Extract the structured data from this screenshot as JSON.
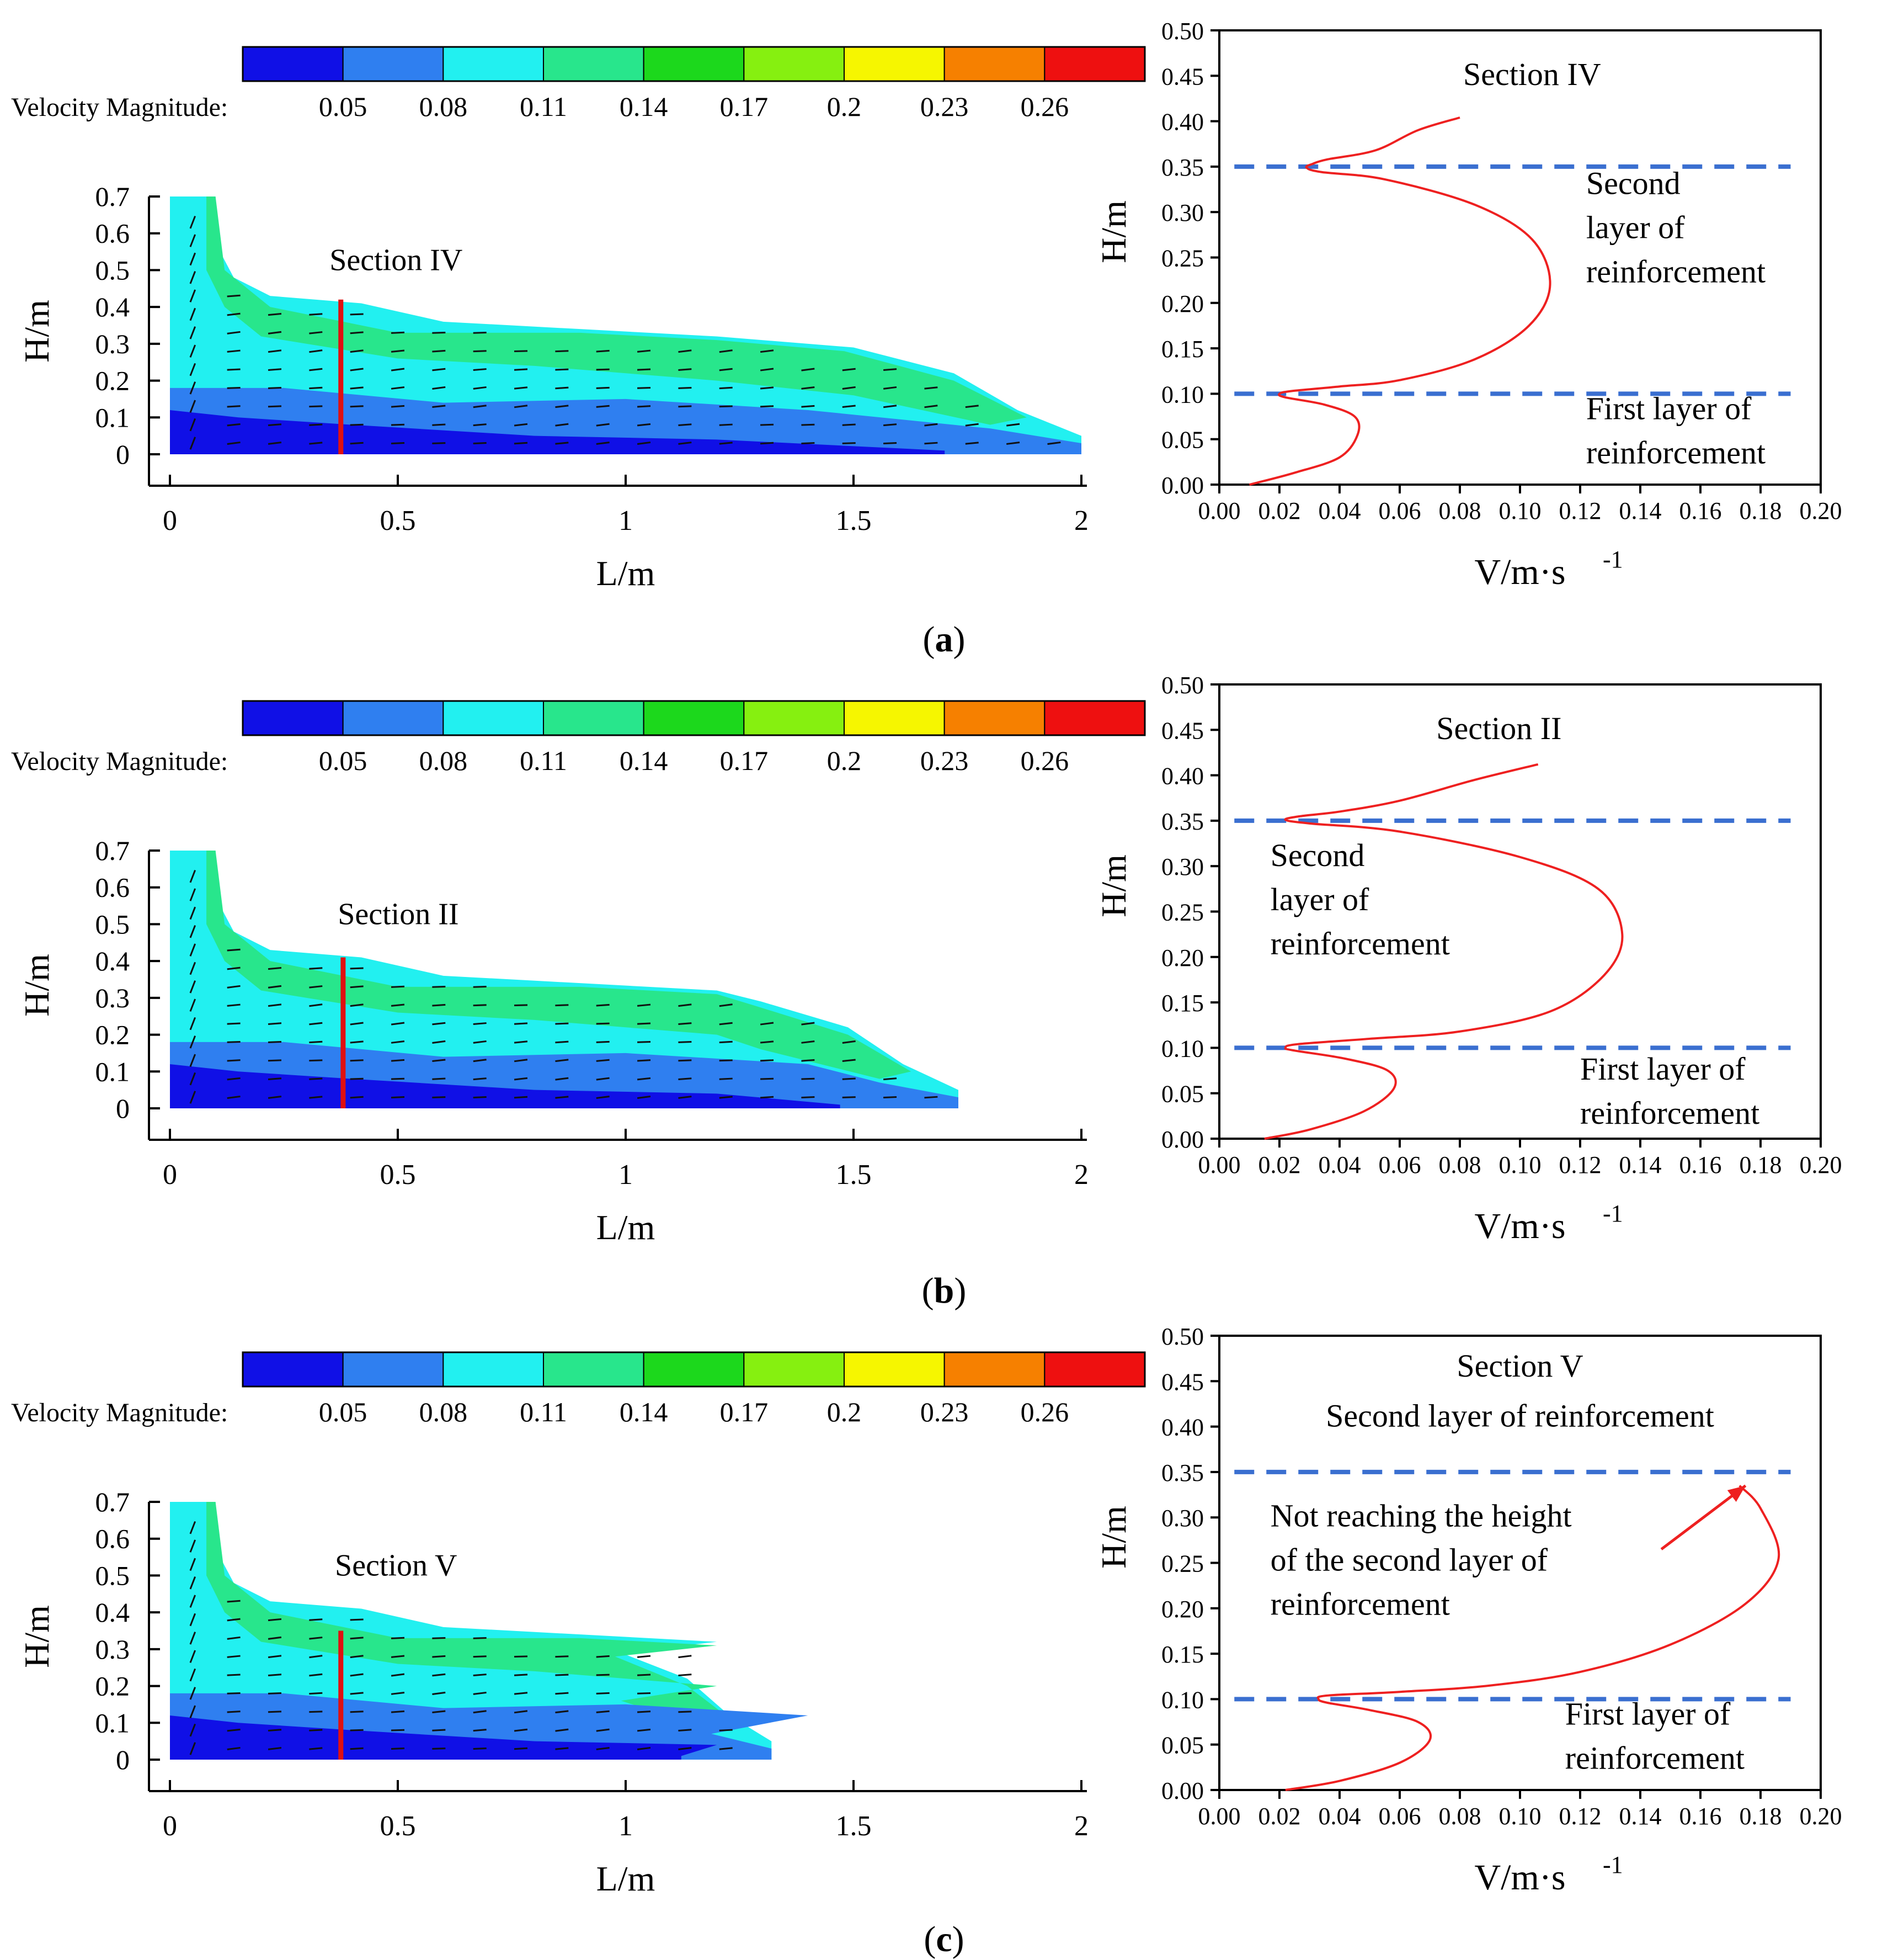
{
  "colorbar": {
    "label": "Velocity Magnitude:",
    "ticks": [
      "0.05",
      "0.08",
      "0.11",
      "0.14",
      "0.17",
      "0.2",
      "0.23",
      "0.26"
    ],
    "colors": [
      "#1010e6",
      "#2f7ff0",
      "#22f0f0",
      "#28e68c",
      "#1cd81c",
      "#86f010",
      "#f6f600",
      "#f68000",
      "#ee1010"
    ]
  },
  "panels": [
    {
      "caption": "a",
      "flow_field": {
        "xlabel": "L/m",
        "ylabel": "H/m",
        "xticks": [
          "0",
          "0.5",
          "1",
          "1.5",
          "2"
        ],
        "yticks": [
          "0",
          "0.1",
          "0.2",
          "0.3",
          "0.4",
          "0.5",
          "0.6",
          "0.7"
        ],
        "xlim": [
          0,
          2
        ],
        "ylim": [
          0,
          0.7
        ],
        "section_label": "Section IV",
        "section_x": 0.375,
        "section_top": 0.42,
        "front_length": 2.0
      },
      "profile": {
        "type": "line",
        "xlabel": "V/m·s-1",
        "ylabel": "H/m",
        "xlim": [
          0,
          0.2
        ],
        "ylim": [
          0,
          0.5
        ],
        "xticks": [
          "0.00",
          "0.02",
          "0.04",
          "0.06",
          "0.08",
          "0.10",
          "0.12",
          "0.14",
          "0.16",
          "0.18",
          "0.20"
        ],
        "yticks": [
          "0.00",
          "0.05",
          "0.10",
          "0.15",
          "0.20",
          "0.25",
          "0.30",
          "0.35",
          "0.40",
          "0.45",
          "0.50"
        ],
        "title": "Section IV",
        "reference_lines": [
          0.1,
          0.35
        ],
        "annotations": [
          {
            "text": [
              "Second",
              "layer of",
              "reinforcement"
            ],
            "x": 0.122,
            "y": 0.32
          },
          {
            "text": [
              "First layer of",
              "reinforcement"
            ],
            "x": 0.122,
            "y": 0.072
          }
        ],
        "series": [
          {
            "name": "Section IV",
            "points": [
              [
                0.01,
                0.0
              ],
              [
                0.025,
                0.013
              ],
              [
                0.04,
                0.03
              ],
              [
                0.046,
                0.055
              ],
              [
                0.045,
                0.075
              ],
              [
                0.035,
                0.088
              ],
              [
                0.022,
                0.096
              ],
              [
                0.02,
                0.1
              ],
              [
                0.024,
                0.103
              ],
              [
                0.04,
                0.108
              ],
              [
                0.06,
                0.115
              ],
              [
                0.085,
                0.138
              ],
              [
                0.103,
                0.175
              ],
              [
                0.11,
                0.22
              ],
              [
                0.104,
                0.27
              ],
              [
                0.085,
                0.308
              ],
              [
                0.055,
                0.336
              ],
              [
                0.034,
                0.344
              ],
              [
                0.029,
                0.349
              ],
              [
                0.031,
                0.353
              ],
              [
                0.036,
                0.358
              ],
              [
                0.052,
                0.368
              ],
              [
                0.066,
                0.39
              ],
              [
                0.08,
                0.404
              ]
            ]
          }
        ]
      }
    },
    {
      "caption": "b",
      "flow_field": {
        "xlabel": "L/m",
        "ylabel": "H/m",
        "xticks": [
          "0",
          "0.5",
          "1",
          "1.5",
          "2"
        ],
        "yticks": [
          "0",
          "0.1",
          "0.2",
          "0.3",
          "0.4",
          "0.5",
          "0.6",
          "0.7"
        ],
        "xlim": [
          0,
          2
        ],
        "ylim": [
          0,
          0.7
        ],
        "section_label": "Section II",
        "section_x": 0.38,
        "section_top": 0.41,
        "front_length": 1.73
      },
      "profile": {
        "type": "line",
        "xlabel": "V/m·s-1",
        "ylabel": "H/m",
        "xlim": [
          0,
          0.2
        ],
        "ylim": [
          0,
          0.5
        ],
        "xticks": [
          "0.00",
          "0.02",
          "0.04",
          "0.06",
          "0.08",
          "0.10",
          "0.12",
          "0.14",
          "0.16",
          "0.18",
          "0.20"
        ],
        "yticks": [
          "0.00",
          "0.05",
          "0.10",
          "0.15",
          "0.20",
          "0.25",
          "0.30",
          "0.35",
          "0.40",
          "0.45",
          "0.50"
        ],
        "title": "Section II",
        "reference_lines": [
          0.1,
          0.35
        ],
        "annotations": [
          {
            "text": [
              "Second",
              "layer of",
              "reinforcement"
            ],
            "x": 0.017,
            "y": 0.3
          },
          {
            "text": [
              "First layer of",
              "reinforcement"
            ],
            "x": 0.12,
            "y": 0.065
          }
        ],
        "series": [
          {
            "name": "Section II",
            "points": [
              [
                0.015,
                0.0
              ],
              [
                0.03,
                0.01
              ],
              [
                0.048,
                0.03
              ],
              [
                0.058,
                0.055
              ],
              [
                0.056,
                0.075
              ],
              [
                0.042,
                0.088
              ],
              [
                0.025,
                0.097
              ],
              [
                0.022,
                0.1
              ],
              [
                0.026,
                0.104
              ],
              [
                0.05,
                0.11
              ],
              [
                0.08,
                0.118
              ],
              [
                0.11,
                0.14
              ],
              [
                0.128,
                0.18
              ],
              [
                0.134,
                0.225
              ],
              [
                0.126,
                0.275
              ],
              [
                0.1,
                0.31
              ],
              [
                0.06,
                0.338
              ],
              [
                0.03,
                0.347
              ],
              [
                0.022,
                0.351
              ],
              [
                0.027,
                0.355
              ],
              [
                0.04,
                0.36
              ],
              [
                0.06,
                0.372
              ],
              [
                0.085,
                0.395
              ],
              [
                0.106,
                0.412
              ]
            ]
          }
        ]
      }
    },
    {
      "caption": "c",
      "flow_field": {
        "xlabel": "L/m",
        "ylabel": "H/m",
        "xticks": [
          "0",
          "0.5",
          "1",
          "1.5",
          "2"
        ],
        "yticks": [
          "0",
          "0.1",
          "0.2",
          "0.3",
          "0.4",
          "0.5",
          "0.6",
          "0.7"
        ],
        "xlim": [
          0,
          2
        ],
        "ylim": [
          0,
          0.7
        ],
        "section_label": "Section V",
        "section_x": 0.375,
        "section_top": 0.35,
        "front_length": 1.32
      },
      "profile": {
        "type": "line",
        "xlabel": "V/m·s-1",
        "ylabel": "H/m",
        "xlim": [
          0,
          0.2
        ],
        "ylim": [
          0,
          0.5
        ],
        "xticks": [
          "0.00",
          "0.02",
          "0.04",
          "0.06",
          "0.08",
          "0.10",
          "0.12",
          "0.14",
          "0.16",
          "0.18",
          "0.20"
        ],
        "yticks": [
          "0.00",
          "0.05",
          "0.10",
          "0.15",
          "0.20",
          "0.25",
          "0.30",
          "0.35",
          "0.40",
          "0.45",
          "0.50"
        ],
        "title": "Section V",
        "title_line2": "Second layer of reinforcement",
        "reference_lines": [
          0.1,
          0.35
        ],
        "annotations": [
          {
            "text": [
              "Not reaching the height",
              "of the second layer of",
              "reinforcement"
            ],
            "x": 0.017,
            "y": 0.29
          },
          {
            "text": [
              "First layer of",
              "reinforcement"
            ],
            "x": 0.115,
            "y": 0.072
          }
        ],
        "arrow": {
          "from": [
            0.147,
            0.265
          ],
          "to": [
            0.175,
            0.335
          ]
        },
        "series": [
          {
            "name": "Section V",
            "points": [
              [
                0.022,
                0.0
              ],
              [
                0.04,
                0.01
              ],
              [
                0.06,
                0.03
              ],
              [
                0.07,
                0.055
              ],
              [
                0.066,
                0.075
              ],
              [
                0.05,
                0.088
              ],
              [
                0.036,
                0.096
              ],
              [
                0.033,
                0.1
              ],
              [
                0.036,
                0.104
              ],
              [
                0.06,
                0.108
              ],
              [
                0.09,
                0.115
              ],
              [
                0.12,
                0.13
              ],
              [
                0.15,
                0.16
              ],
              [
                0.175,
                0.205
              ],
              [
                0.186,
                0.255
              ],
              [
                0.18,
                0.31
              ],
              [
                0.173,
                0.335
              ]
            ]
          }
        ]
      }
    }
  ]
}
